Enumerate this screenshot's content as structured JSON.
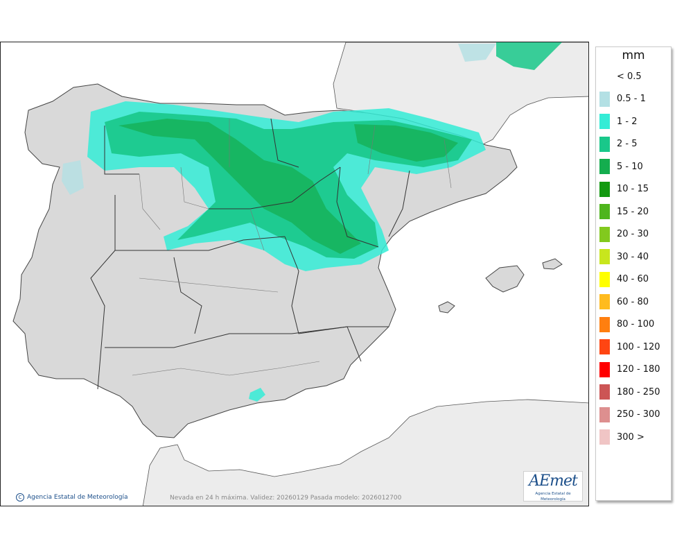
{
  "map": {
    "caption": "Nevada en 24 h máxima. Validez: 20260129 Pasada modelo: 2026012700",
    "credit": "Agencia Estatal de Meteorología",
    "logo_text": "AEmet",
    "logo_subtext": "Agencia Estatal de Meteorología",
    "colors": {
      "sea": "#ffffff",
      "land": "#d9d9d9",
      "foreign_land": "#e8e8e8",
      "border": "#444444"
    }
  },
  "legend": {
    "unit": "mm",
    "items": [
      {
        "label": "< 0.5",
        "color": "#ffffff"
      },
      {
        "label": "0.5 - 1",
        "color": "#b3e0e4"
      },
      {
        "label": "1 - 2",
        "color": "#34ecd6"
      },
      {
        "label": "2 - 5",
        "color": "#19c88a"
      },
      {
        "label": "5 - 10",
        "color": "#14ad4e"
      },
      {
        "label": "10 - 15",
        "color": "#129910"
      },
      {
        "label": "15 - 20",
        "color": "#4eb51d"
      },
      {
        "label": "20 - 30",
        "color": "#82c91e"
      },
      {
        "label": "30 - 40",
        "color": "#c8e61d"
      },
      {
        "label": "40 - 60",
        "color": "#ffff00"
      },
      {
        "label": "60 - 80",
        "color": "#ffbb1e"
      },
      {
        "label": "80 - 100",
        "color": "#ff7f0f"
      },
      {
        "label": "100 - 120",
        "color": "#ff4512"
      },
      {
        "label": "120 - 180",
        "color": "#ff0000"
      },
      {
        "label": "180 - 250",
        "color": "#cc5555"
      },
      {
        "label": "250 - 300",
        "color": "#dd8f8f"
      },
      {
        "label": "300 >",
        "color": "#f0c5c5"
      }
    ]
  }
}
